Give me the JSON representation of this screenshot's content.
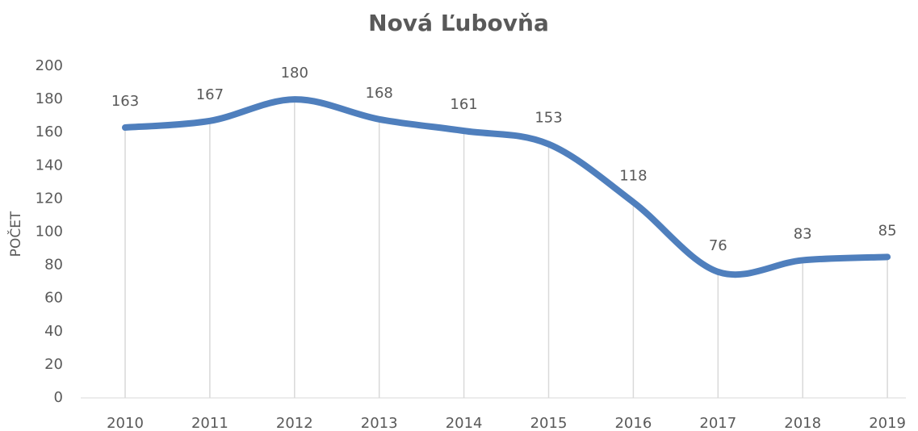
{
  "chart_data": {
    "type": "line",
    "title": "Nová Ľubovňa",
    "y_label": "POČET",
    "categories": [
      "2010",
      "2011",
      "2012",
      "2013",
      "2014",
      "2015",
      "2016",
      "2017",
      "2018",
      "2019"
    ],
    "series": [
      {
        "name": "POČET",
        "color": "#4f7fbd",
        "values": [
          163,
          167,
          180,
          168,
          161,
          153,
          118,
          76,
          83,
          85
        ]
      }
    ],
    "ylim": [
      0,
      200
    ],
    "yticks": [
      0,
      20,
      40,
      60,
      80,
      100,
      120,
      140,
      160,
      180,
      200
    ],
    "drop_lines": true,
    "smooth": true
  }
}
